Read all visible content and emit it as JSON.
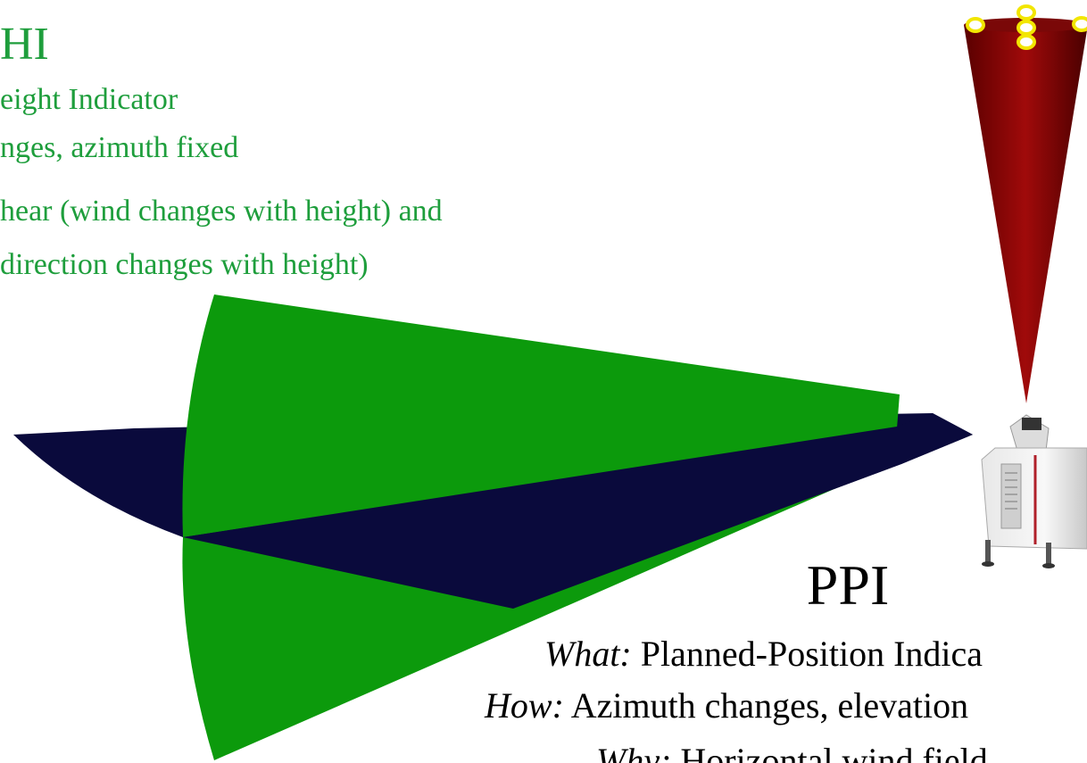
{
  "rhi": {
    "title": "HI",
    "lines": [
      "eight Indicator",
      "nges, azimuth fixed",
      "hear (wind changes with height) and",
      "direction changes with height)"
    ]
  },
  "ppi": {
    "title": "PPI",
    "lines": [
      {
        "label": "What:",
        "text": "Planned-Position Indica"
      },
      {
        "label": "How:",
        "text": "Azimuth changes, elevation"
      },
      {
        "label": "Why:",
        "text": "Horizontal wind field"
      }
    ]
  }
}
